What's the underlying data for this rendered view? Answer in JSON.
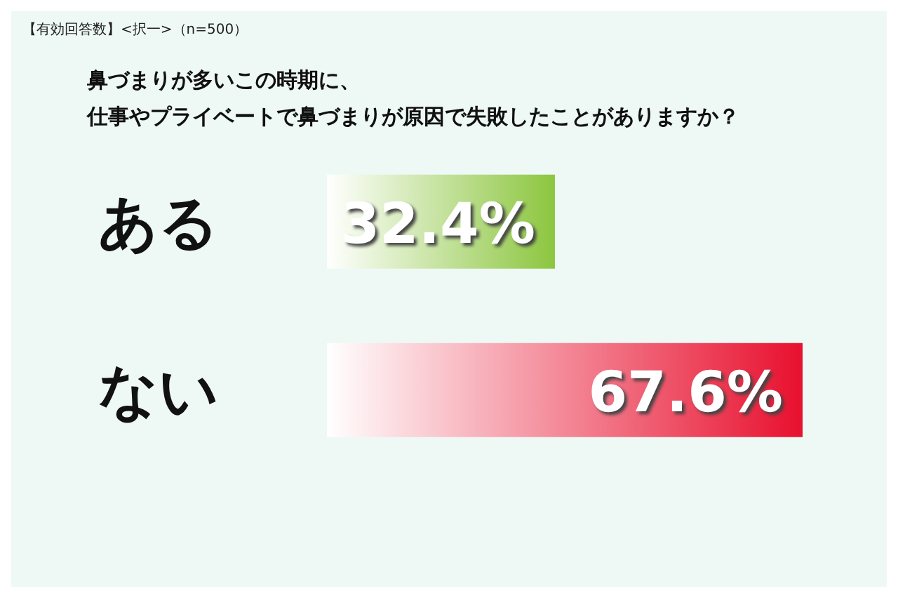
{
  "chart_data": {
    "type": "bar",
    "orientation": "horizontal",
    "title": "鼻づまりが多いこの時期に、",
    "subtitle": "仕事やプライベートで鼻づまりが原因で失敗したことがありますか？",
    "annotations": [
      "【有効回答数】<択一>（n=500）"
    ],
    "categories": [
      "ある",
      "ない"
    ],
    "values": [
      32.4,
      67.6
    ],
    "colors": [
      "#8cc63f",
      "#e8102e"
    ],
    "value_labels": [
      "32.4%",
      "67.6%"
    ]
  }
}
